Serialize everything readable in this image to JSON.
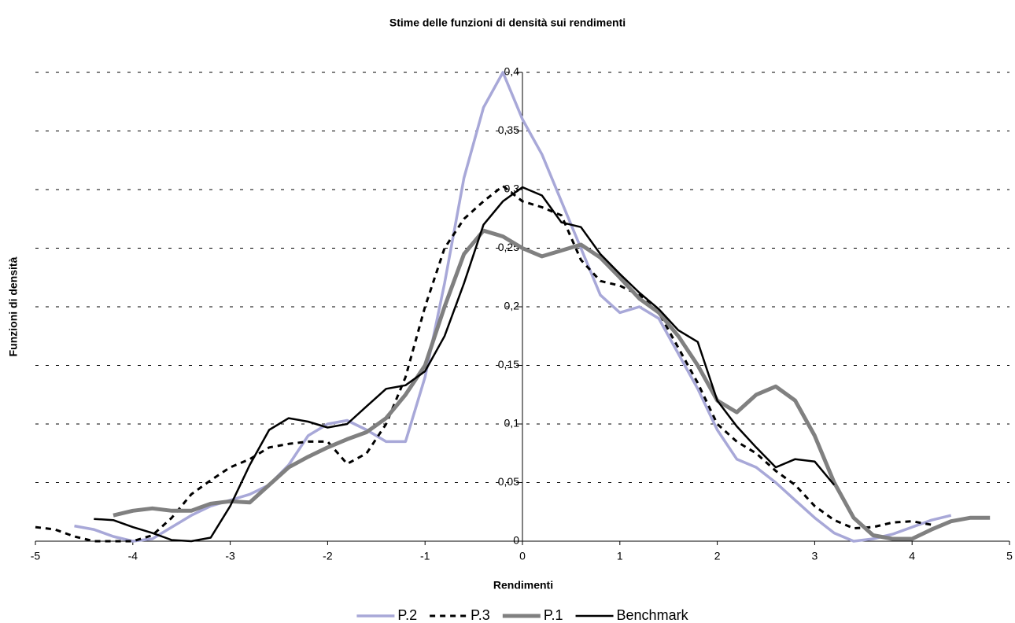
{
  "chart_data": {
    "type": "line",
    "title": "Stime delle funzioni di densità sui rendimenti",
    "x_label": "Rendimenti",
    "y_label": "Funzioni di densità",
    "x": [
      -5,
      -4.8,
      -4.6,
      -4.4,
      -4.2,
      -4.0,
      -3.8,
      -3.6,
      -3.4,
      -3.2,
      -3.0,
      -2.8,
      -2.6,
      -2.4,
      -2.2,
      -2.0,
      -1.8,
      -1.6,
      -1.4,
      -1.2,
      -1.0,
      -0.8,
      -0.6,
      -0.4,
      -0.2,
      0,
      0.2,
      0.4,
      0.6,
      0.8,
      1.0,
      1.2,
      1.4,
      1.6,
      1.8,
      2.0,
      2.2,
      2.4,
      2.6,
      2.8,
      3.0,
      3.2,
      3.4,
      3.6,
      3.8,
      4.0,
      4.2,
      4.4,
      4.6,
      4.8
    ],
    "series": [
      {
        "name": "P.2",
        "color": "#a8a8d8",
        "line_style": "solid",
        "values": [
          null,
          null,
          0.013,
          0.01,
          0.004,
          0,
          0.002,
          0.012,
          0.022,
          0.03,
          0.035,
          0.04,
          0.048,
          0.065,
          0.09,
          0.1,
          0.103,
          0.095,
          0.085,
          0.085,
          0.14,
          0.22,
          0.31,
          0.37,
          0.4,
          0.36,
          0.33,
          0.29,
          0.25,
          0.21,
          0.195,
          0.2,
          0.19,
          0.16,
          0.13,
          0.095,
          0.07,
          0.063,
          0.05,
          0.035,
          0.02,
          0.007,
          0,
          0.002,
          0.006,
          0.012,
          0.018,
          0.022,
          null,
          null
        ]
      },
      {
        "name": "P.3",
        "color": "#000000",
        "line_style": "dashed",
        "values": [
          0.012,
          0.01,
          0.004,
          0,
          0,
          0,
          0.005,
          0.02,
          0.04,
          0.052,
          0.063,
          0.07,
          0.08,
          0.083,
          0.085,
          0.085,
          0.066,
          0.075,
          0.1,
          0.14,
          0.2,
          0.25,
          0.275,
          0.29,
          0.303,
          0.29,
          0.285,
          0.278,
          0.24,
          0.222,
          0.218,
          0.21,
          0.195,
          0.165,
          0.135,
          0.1,
          0.085,
          0.075,
          0.06,
          0.048,
          0.03,
          0.018,
          0.011,
          0.012,
          0.016,
          0.017,
          0.014,
          null,
          null,
          null
        ]
      },
      {
        "name": "P.1",
        "color": "#808080",
        "line_style": "thick",
        "values": [
          null,
          null,
          null,
          null,
          0.022,
          0.026,
          0.028,
          0.026,
          0.026,
          0.032,
          0.034,
          0.033,
          0.048,
          0.063,
          0.072,
          0.08,
          0.087,
          0.093,
          0.105,
          0.125,
          0.15,
          0.2,
          0.245,
          0.265,
          0.26,
          0.25,
          0.243,
          0.248,
          0.253,
          0.242,
          0.225,
          0.207,
          0.195,
          0.175,
          0.15,
          0.12,
          0.11,
          0.125,
          0.132,
          0.12,
          0.09,
          0.05,
          0.02,
          0.005,
          0.002,
          0.002,
          0.01,
          0.017,
          0.02,
          0.02
        ]
      },
      {
        "name": "Benchmark",
        "color": "#000000",
        "line_style": "solid",
        "values": [
          null,
          null,
          null,
          0.019,
          0.018,
          0.012,
          0.007,
          0.001,
          0,
          0.003,
          0.03,
          0.065,
          0.095,
          0.105,
          0.102,
          0.097,
          0.1,
          0.115,
          0.13,
          0.133,
          0.145,
          0.175,
          0.22,
          0.27,
          0.29,
          0.302,
          0.295,
          0.272,
          0.268,
          0.245,
          0.228,
          0.212,
          0.198,
          0.18,
          0.17,
          0.12,
          0.098,
          0.08,
          0.063,
          0.07,
          0.068,
          0.048,
          null,
          null,
          null,
          null,
          null,
          null,
          null,
          null
        ]
      }
    ],
    "xlim": [
      -5,
      5
    ],
    "xticks": [
      -5,
      -4,
      -3,
      -2,
      -1,
      0,
      1,
      2,
      3,
      4,
      5
    ],
    "ylim": [
      0,
      0.4
    ],
    "yticks": [
      0,
      {
        "value": 0.05,
        "label": "0,05"
      },
      {
        "value": 0.1,
        "label": "0,1"
      },
      {
        "value": 0.15,
        "label": "0,15"
      },
      {
        "value": 0.2,
        "label": "0,2"
      },
      {
        "value": 0.25,
        "label": "0,25"
      },
      {
        "value": 0.3,
        "label": "0,3"
      },
      {
        "value": 0.35,
        "label": "0,35"
      },
      {
        "value": 0.4,
        "label": "0,4"
      }
    ],
    "grid": true,
    "legend": "bottom"
  }
}
